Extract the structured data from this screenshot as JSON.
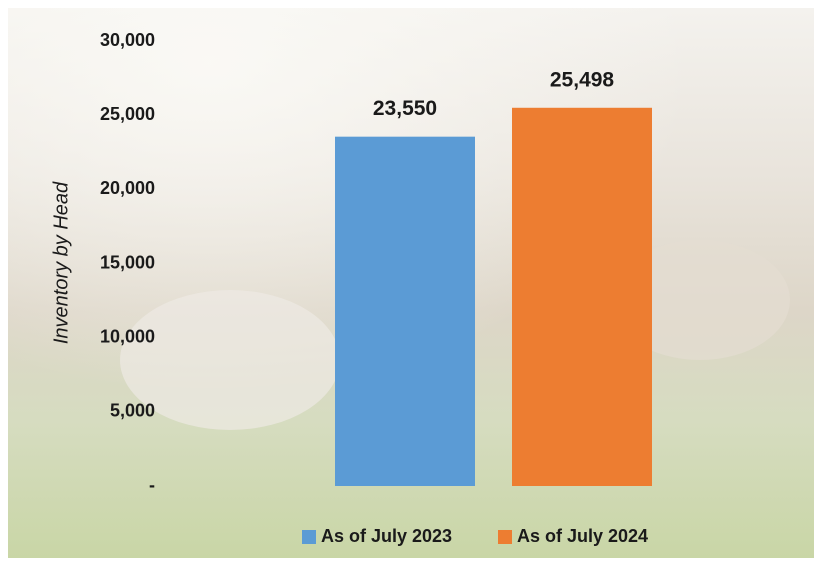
{
  "chart_data": {
    "type": "bar",
    "categories": [
      null
    ],
    "series": [
      {
        "name": "As of July 2023",
        "color": "#5b9bd5",
        "values": [
          23550
        ],
        "value_labels": [
          "23,550"
        ]
      },
      {
        "name": "As of July 2024",
        "color": "#ed7d31",
        "values": [
          25498
        ],
        "value_labels": [
          "25,498"
        ]
      }
    ],
    "y_label": "Inventory by Head",
    "ylim": [
      0,
      30000
    ],
    "yticks": [
      {
        "value": 0,
        "label": "-"
      },
      {
        "value": 5000,
        "label": "5,000"
      },
      {
        "value": 10000,
        "label": "10,000"
      },
      {
        "value": 15000,
        "label": "15,000"
      },
      {
        "value": 20000,
        "label": "20,000"
      },
      {
        "value": 25000,
        "label": "25,000"
      },
      {
        "value": 30000,
        "label": "30,000"
      }
    ],
    "grid": false,
    "legend": "bottom"
  }
}
